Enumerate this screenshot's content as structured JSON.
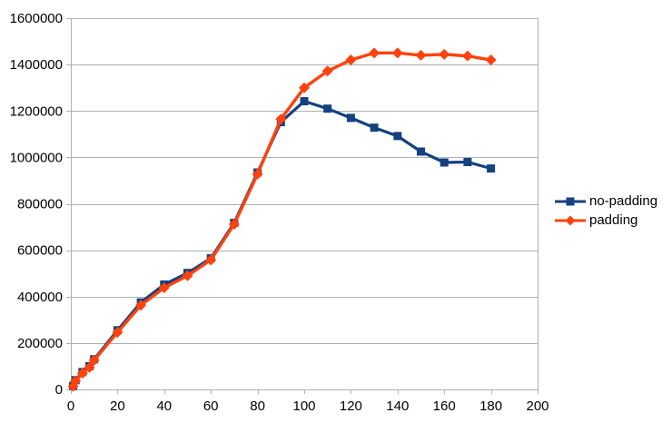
{
  "chart_data": {
    "type": "line",
    "title": "",
    "xlabel": "",
    "ylabel": "",
    "x": [
      1,
      2,
      5,
      8,
      10,
      20,
      30,
      40,
      50,
      60,
      70,
      80,
      90,
      100,
      110,
      120,
      130,
      140,
      150,
      160,
      170,
      180
    ],
    "series": [
      {
        "name": "no-padding",
        "color": "#14417f",
        "marker": "square",
        "values": [
          15000,
          40000,
          75000,
          100000,
          130000,
          255000,
          375000,
          452000,
          502000,
          565000,
          718000,
          935000,
          1152000,
          1242000,
          1210000,
          1170000,
          1128000,
          1092000,
          1025000,
          978000,
          980000,
          952000
        ]
      },
      {
        "name": "padding",
        "color": "#ff420e",
        "marker": "diamond",
        "values": [
          13000,
          37000,
          70000,
          95000,
          126000,
          246000,
          363000,
          438000,
          490000,
          558000,
          712000,
          928000,
          1165000,
          1300000,
          1372000,
          1420000,
          1450000,
          1450000,
          1440000,
          1444000,
          1437000,
          1420000
        ]
      }
    ],
    "xlim": [
      0,
      200
    ],
    "ylim": [
      0,
      1600000
    ],
    "x_ticks": [
      0,
      20,
      40,
      60,
      80,
      100,
      120,
      140,
      160,
      180,
      200
    ],
    "y_ticks": [
      0,
      200000,
      400000,
      600000,
      800000,
      1000000,
      1200000,
      1400000,
      1600000
    ],
    "grid": "horizontal",
    "legend_position": "right",
    "colors": {
      "grid": "#b0b0b0",
      "axis": "#b0b0b0",
      "text": "#000000",
      "background": "#ffffff"
    }
  },
  "legend": {
    "items": [
      {
        "label": "no-padding"
      },
      {
        "label": "padding"
      }
    ]
  }
}
